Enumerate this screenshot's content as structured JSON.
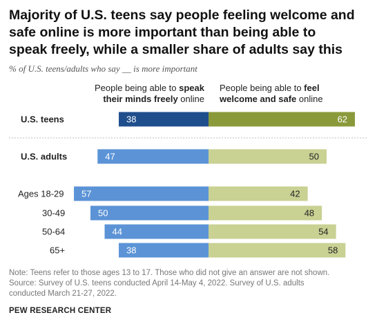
{
  "header": {
    "title_lines": [
      "Majority of U.S. teens say people feeling welcome and",
      "safe online is more important than being able to",
      "speak freely, while a smaller share of adults say this"
    ],
    "subtitle": "% of U.S. teens/adults who say __ is more important"
  },
  "columns": {
    "left": {
      "line1_prefix": "People being able to ",
      "line1_bold": "speak",
      "line2_bold": "their minds freely",
      "line2_suffix": " online"
    },
    "right": {
      "line1_prefix": "People being able to ",
      "line1_bold": "feel",
      "line2_bold": "welcome and safe",
      "line2_suffix": " online"
    }
  },
  "chart_data": {
    "type": "bar",
    "orientation": "diverging-horizontal",
    "categories": [
      "U.S. teens",
      "U.S. adults",
      "Ages 18-29",
      "30-49",
      "50-64",
      "65+"
    ],
    "series": [
      {
        "name": "People being able to speak their minds freely online",
        "values": [
          38,
          47,
          57,
          50,
          44,
          38
        ]
      },
      {
        "name": "People being able to feel welcome and safe online",
        "values": [
          62,
          50,
          42,
          48,
          54,
          58
        ]
      }
    ],
    "colors": {
      "teens_left": "#1f4e8c",
      "teens_right": "#8a9a3a",
      "adults_left": "#5b93d6",
      "adults_right": "#c9d193",
      "divider": "#bbbbbb"
    },
    "bold_categories": [
      "U.S. teens",
      "U.S. adults"
    ]
  },
  "footer": {
    "note_line1": "Note: Teens refer to those ages 13 to 17. Those who did not give an answer are not shown.",
    "source_line1": "Source: Survey of U.S. teens conducted April 14-May 4, 2022. Survey of U.S. adults",
    "source_line2": "conducted March 21-27, 2022.",
    "brand": "PEW RESEARCH CENTER"
  }
}
